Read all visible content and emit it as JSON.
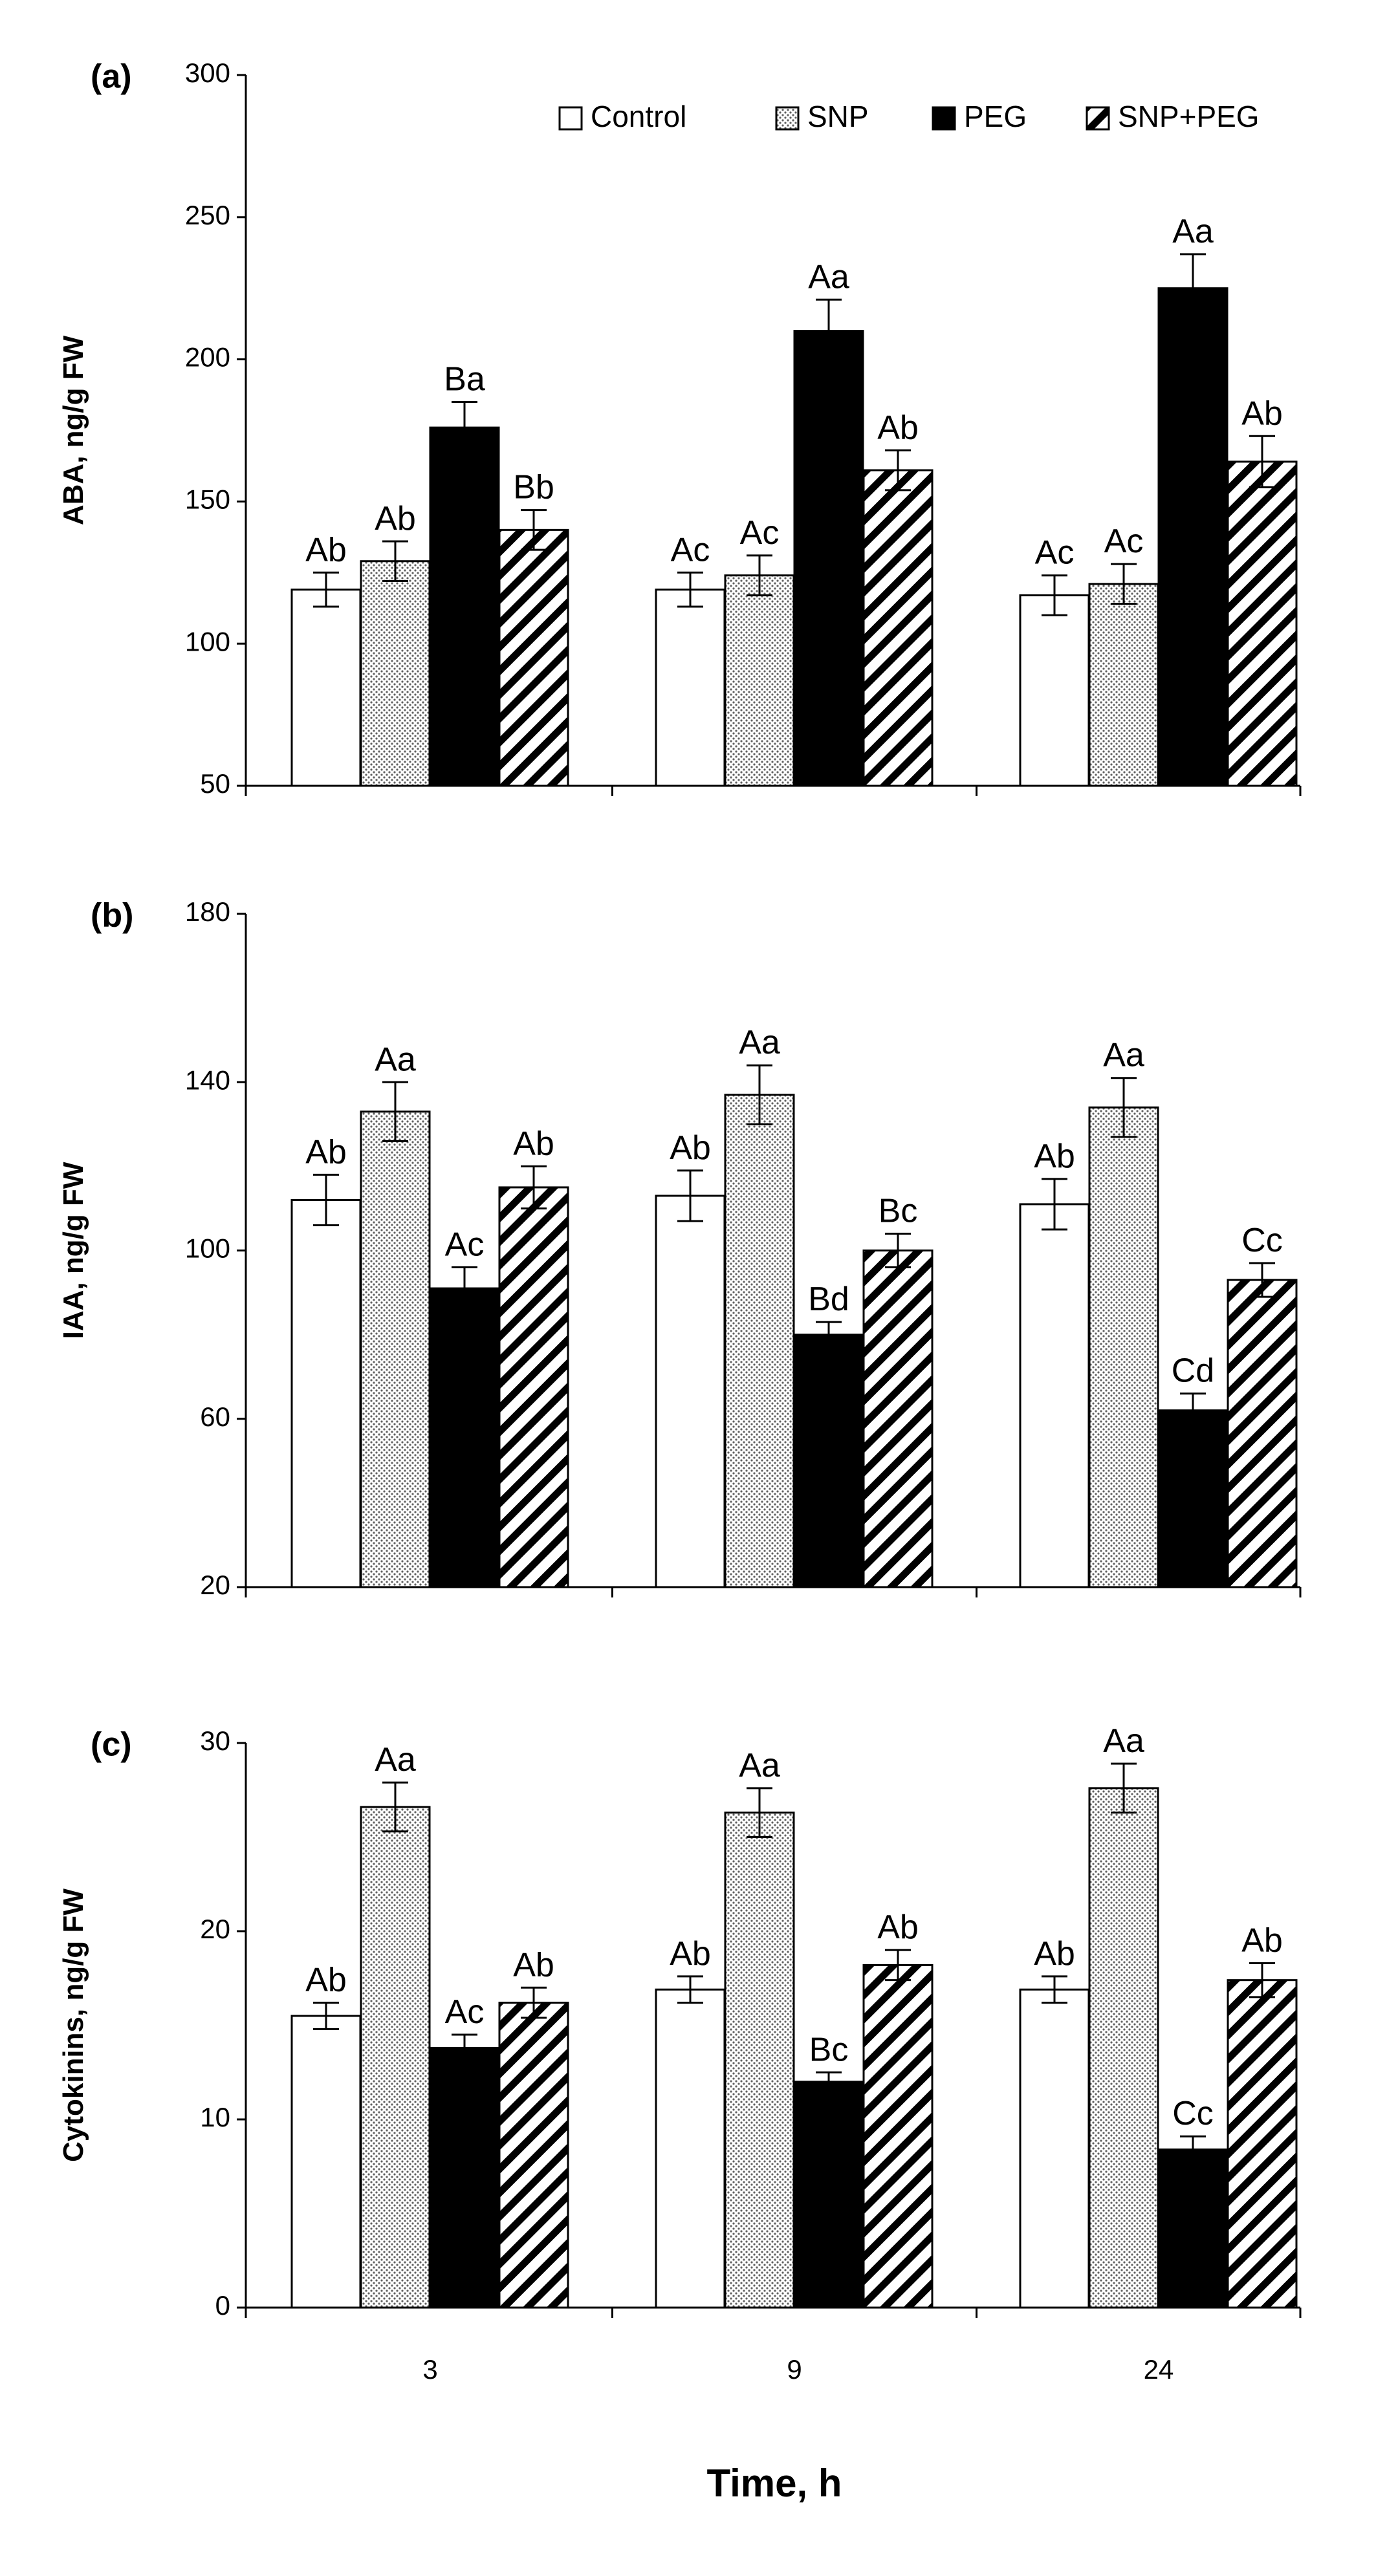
{
  "colors": {
    "ink": "#000000",
    "background": "#ffffff",
    "dots": "#606060"
  },
  "chart_data": [
    {
      "type": "bar",
      "panel": "(a)",
      "title": "",
      "xlabel": "Time, h",
      "ylabel": "ABA, ng/g FW",
      "ylim": [
        50,
        300
      ],
      "yticks": [
        50,
        100,
        150,
        200,
        250,
        300
      ],
      "categories": [
        "3",
        "9",
        "24"
      ],
      "legend": {
        "placement": "top-right",
        "entries": [
          "Control",
          "SNP",
          "PEG",
          "SNP+PEG"
        ]
      },
      "series": [
        {
          "name": "Control",
          "pattern": "white",
          "values": [
            119,
            119,
            117
          ],
          "errors": [
            6,
            6,
            7
          ],
          "labels": [
            "Ab",
            "Ac",
            "Ac"
          ]
        },
        {
          "name": "SNP",
          "pattern": "dots",
          "values": [
            129,
            124,
            121
          ],
          "errors": [
            7,
            7,
            7
          ],
          "labels": [
            "Ab",
            "Ac",
            "Ac"
          ]
        },
        {
          "name": "PEG",
          "pattern": "black",
          "values": [
            176,
            210,
            225
          ],
          "errors": [
            9,
            11,
            12
          ],
          "labels": [
            "Ba",
            "Aa",
            "Aa"
          ]
        },
        {
          "name": "SNP+PEG",
          "pattern": "hatch",
          "values": [
            140,
            161,
            164
          ],
          "errors": [
            7,
            7,
            9
          ],
          "labels": [
            "Bb",
            "Ab",
            "Ab"
          ]
        }
      ]
    },
    {
      "type": "bar",
      "panel": "(b)",
      "title": "",
      "xlabel": "Time, h",
      "ylabel": "IAA, ng/g FW",
      "ylim": [
        20,
        180
      ],
      "yticks": [
        20,
        60,
        100,
        140,
        180
      ],
      "categories": [
        "3",
        "9",
        "24"
      ],
      "series": [
        {
          "name": "Control",
          "pattern": "white",
          "values": [
            112,
            113,
            111
          ],
          "errors": [
            6,
            6,
            6
          ],
          "labels": [
            "Ab",
            "Ab",
            "Ab"
          ]
        },
        {
          "name": "SNP",
          "pattern": "dots",
          "values": [
            133,
            137,
            134
          ],
          "errors": [
            7,
            7,
            7
          ],
          "labels": [
            "Aa",
            "Aa",
            "Aa"
          ]
        },
        {
          "name": "PEG",
          "pattern": "black",
          "values": [
            91,
            80,
            62
          ],
          "errors": [
            5,
            3,
            4
          ],
          "labels": [
            "Ac",
            "Bd",
            "Cd"
          ]
        },
        {
          "name": "SNP+PEG",
          "pattern": "hatch",
          "values": [
            115,
            100,
            93
          ],
          "errors": [
            5,
            4,
            4
          ],
          "labels": [
            "Ab",
            "Bc",
            "Cc"
          ]
        }
      ]
    },
    {
      "type": "bar",
      "panel": "(c)",
      "title": "",
      "xlabel": "Time, h",
      "ylabel": "Cytokinins, ng/g FW",
      "ylim": [
        0,
        30
      ],
      "yticks": [
        0,
        10,
        20,
        30
      ],
      "categories": [
        "3",
        "9",
        "24"
      ],
      "series": [
        {
          "name": "Control",
          "pattern": "white",
          "values": [
            15.5,
            16.9,
            16.9
          ],
          "errors": [
            0.7,
            0.7,
            0.7
          ],
          "labels": [
            "Ab",
            "Ab",
            "Ab"
          ]
        },
        {
          "name": "SNP",
          "pattern": "dots",
          "values": [
            26.6,
            26.3,
            27.6
          ],
          "errors": [
            1.3,
            1.3,
            1.3
          ],
          "labels": [
            "Aa",
            "Aa",
            "Aa"
          ]
        },
        {
          "name": "PEG",
          "pattern": "black",
          "values": [
            13.8,
            12.0,
            8.4
          ],
          "errors": [
            0.7,
            0.5,
            0.7
          ],
          "labels": [
            "Ac",
            "Bc",
            "Cc"
          ]
        },
        {
          "name": "SNP+PEG",
          "pattern": "hatch",
          "values": [
            16.2,
            18.2,
            17.4
          ],
          "errors": [
            0.8,
            0.8,
            0.9
          ],
          "labels": [
            "Ab",
            "Ab",
            "Ab"
          ]
        }
      ]
    }
  ]
}
